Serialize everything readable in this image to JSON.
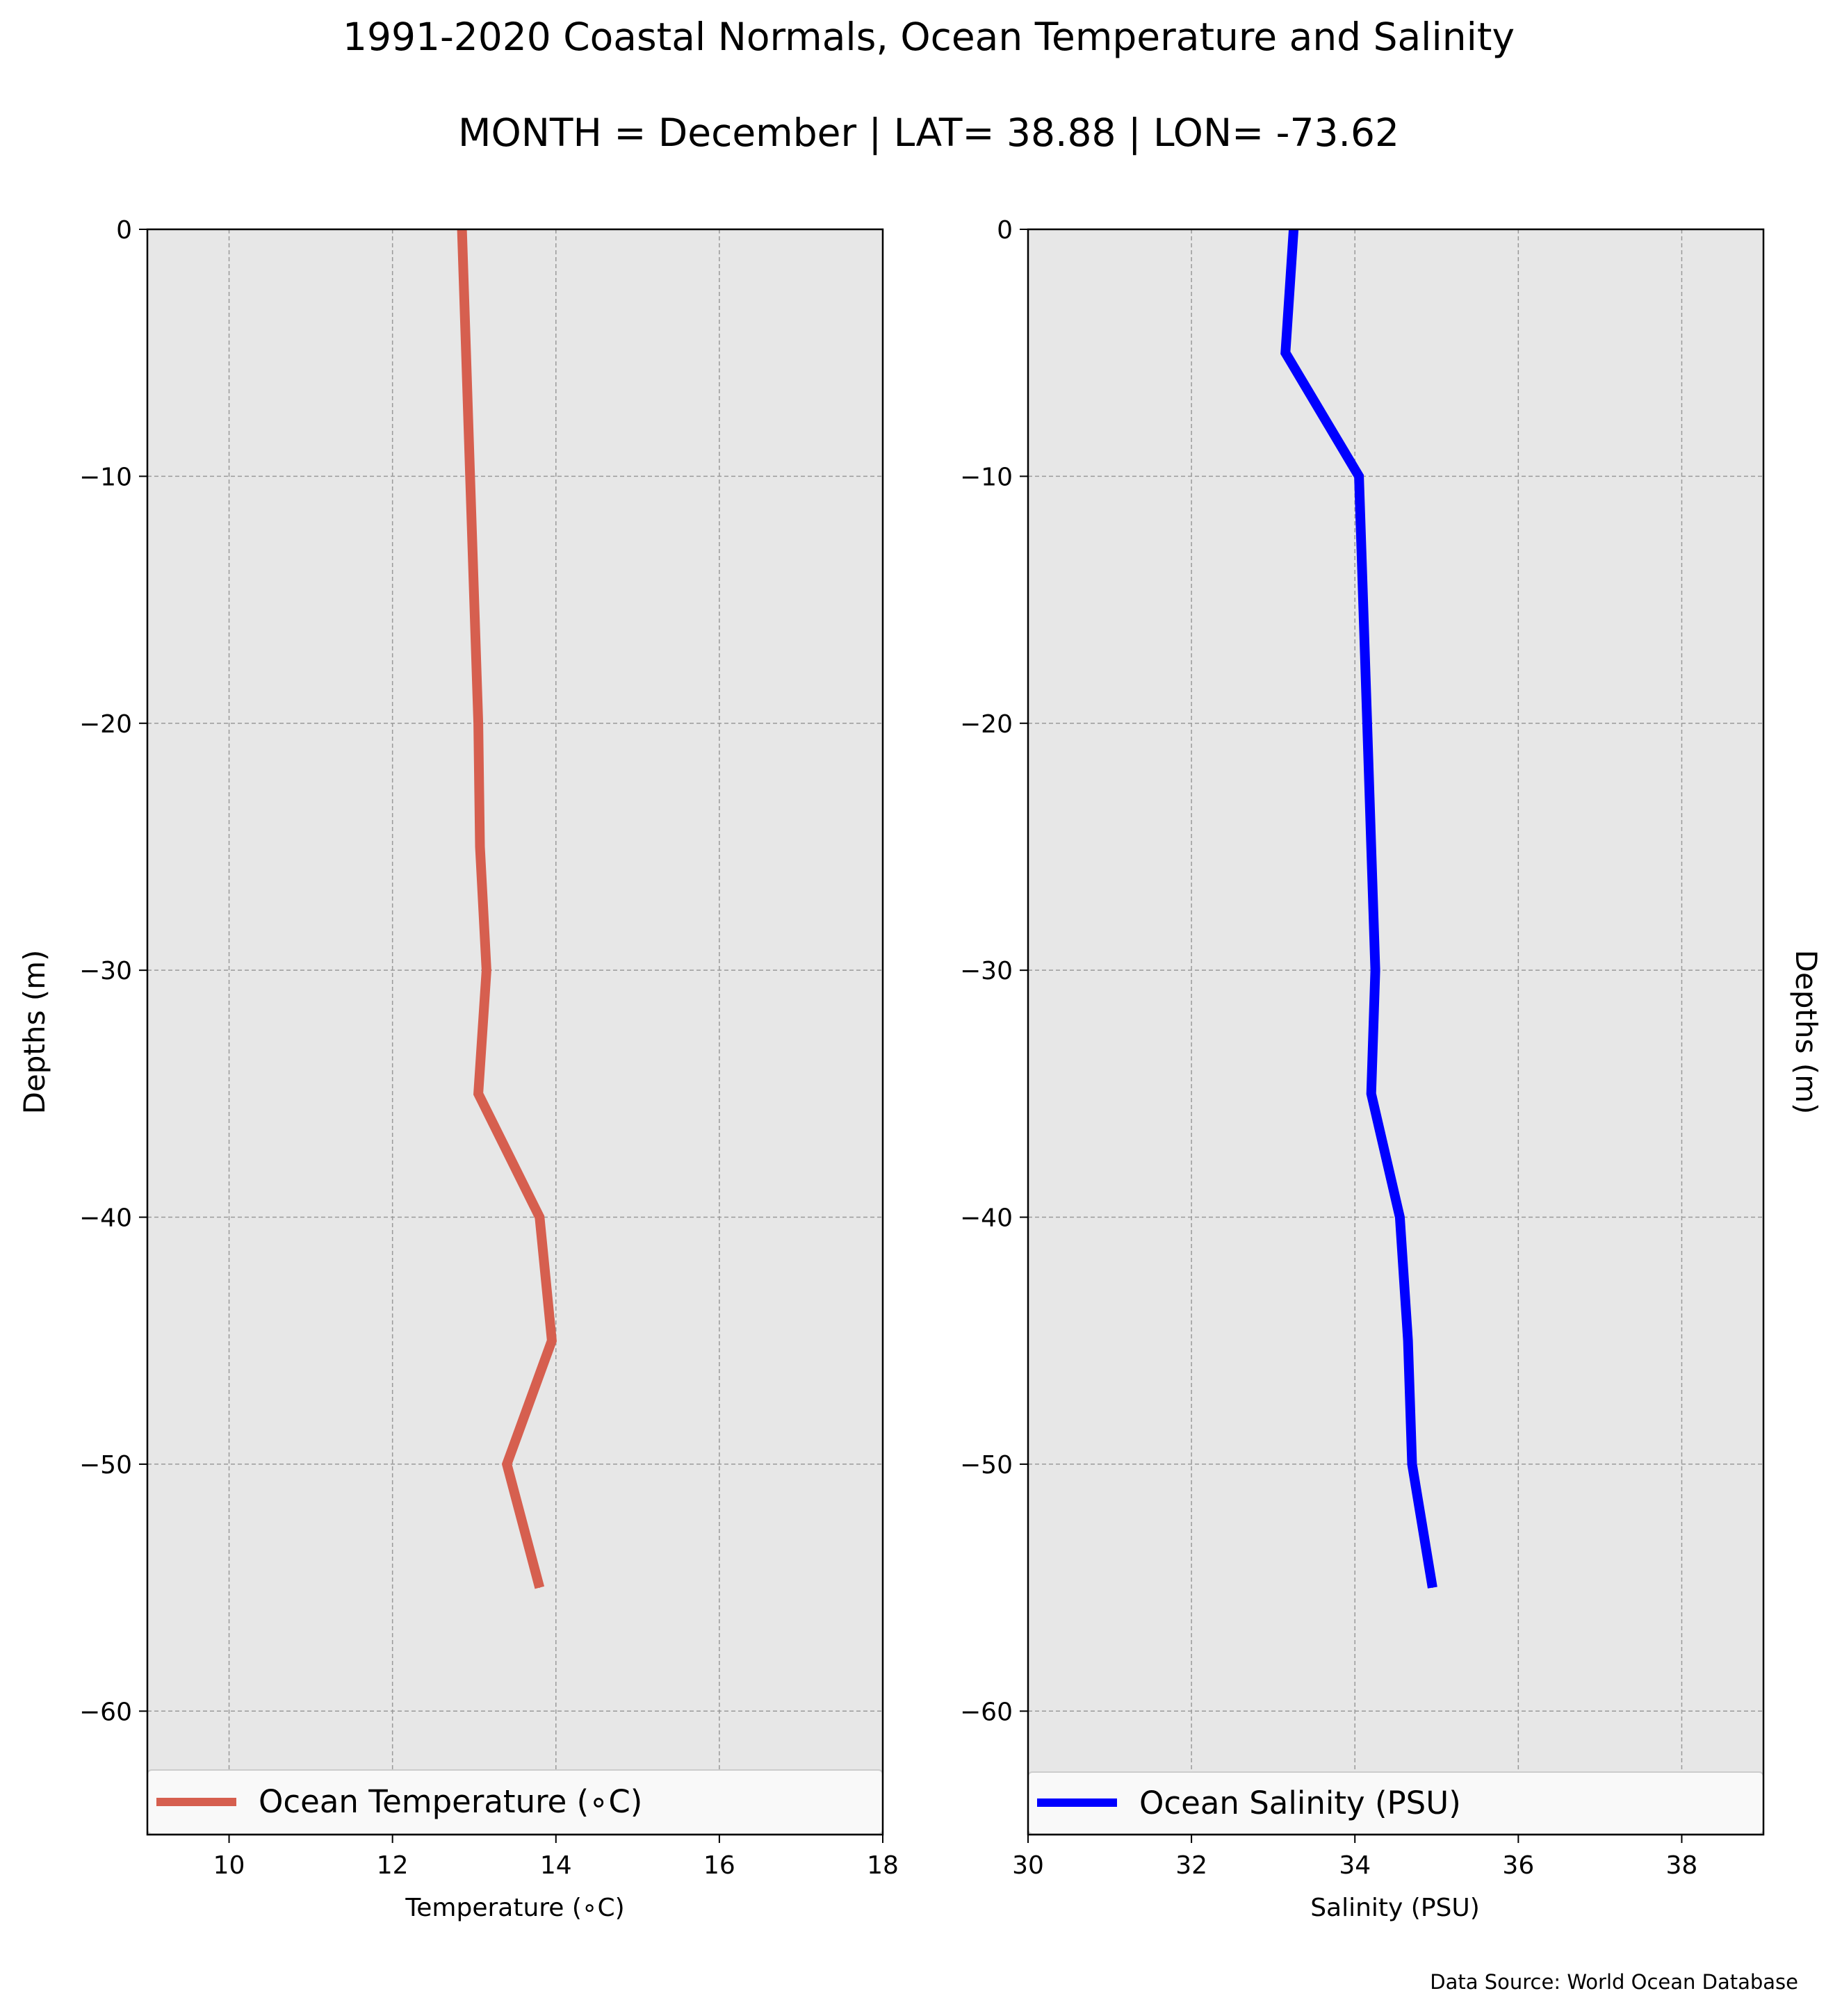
{
  "figure": {
    "title": "1991-2020 Coastal Normals, Ocean Temperature and Salinity",
    "subtitle": "MONTH = December | LAT= 38.88 | LON= -73.62",
    "source": "Data Source: World Ocean Database"
  },
  "chart_data": [
    {
      "type": "line",
      "xlabel": "Temperature (∘C)",
      "ylabel": "Depths (m)",
      "xlim": [
        9,
        18
      ],
      "ylim": [
        -65,
        0
      ],
      "xticks": [
        10,
        12,
        14,
        16,
        18
      ],
      "xtick_labels": [
        "10",
        "12",
        "14",
        "16",
        "18"
      ],
      "yticks": [
        0,
        -10,
        -20,
        -30,
        -40,
        -50,
        -60
      ],
      "ytick_labels": [
        "0",
        "−10",
        "−20",
        "−30",
        "−40",
        "−50",
        "−60"
      ],
      "grid": true,
      "legend_position": "bottom",
      "series": [
        {
          "name": "Ocean Temperature (∘C)",
          "color": "#d65f4f",
          "x": [
            12.85,
            12.9,
            12.95,
            13.0,
            13.05,
            13.07,
            13.15,
            13.05,
            13.8,
            13.95,
            13.4,
            13.8
          ],
          "y": [
            0,
            -5,
            -10,
            -15,
            -20,
            -25,
            -30,
            -35,
            -40,
            -45,
            -50,
            -55
          ]
        }
      ]
    },
    {
      "type": "line",
      "xlabel": "Salinity (PSU)",
      "ylabel": "Depths (m)",
      "xlim": [
        30,
        39
      ],
      "ylim": [
        -65,
        0
      ],
      "xticks": [
        30,
        32,
        34,
        36,
        38
      ],
      "xtick_labels": [
        "30",
        "32",
        "34",
        "36",
        "38"
      ],
      "yticks": [
        0,
        -10,
        -20,
        -30,
        -40,
        -50,
        -60
      ],
      "ytick_labels": [
        "0",
        "−10",
        "−20",
        "−30",
        "−40",
        "−50",
        "−60"
      ],
      "grid": true,
      "legend_position": "bottom",
      "series": [
        {
          "name": "Ocean Salinity (PSU)",
          "color": "#0000ff",
          "x": [
            33.25,
            33.15,
            34.05,
            34.1,
            34.15,
            34.2,
            34.25,
            34.2,
            34.55,
            34.65,
            34.7,
            34.95
          ],
          "y": [
            0,
            -5,
            -10,
            -15,
            -20,
            -25,
            -30,
            -35,
            -40,
            -45,
            -50,
            -55
          ]
        }
      ]
    }
  ]
}
